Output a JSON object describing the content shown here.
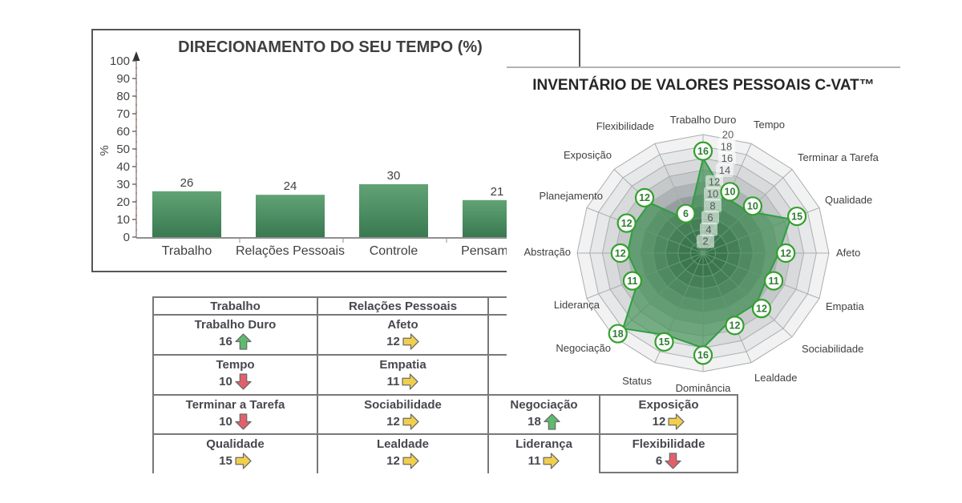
{
  "bar_panel": {
    "title": "DIRECIONAMENTO DO SEU TEMPO (%)",
    "ylabel": "%"
  },
  "radar_panel": {
    "title": "INVENTÁRIO DE VALORES PESSOAIS C-VAT™"
  },
  "chart_data": [
    {
      "type": "bar",
      "title": "DIRECIONAMENTO DO SEU TEMPO (%)",
      "categories": [
        "Trabalho",
        "Relações Pessoais",
        "Controle",
        "Pensamento"
      ],
      "values": [
        26,
        24,
        30,
        21
      ],
      "xlabel": "",
      "ylabel": "%",
      "ylim": [
        0,
        100
      ],
      "ytick_step": 10,
      "grid": false,
      "bar_gradient": [
        "#61a375",
        "#3a7950"
      ],
      "axis_color": "#8f8f8f",
      "text_color": "#454545",
      "red_tick_color": "#d94f4f"
    },
    {
      "type": "radar",
      "title": "INVENTÁRIO DE VALORES PESSOAIS C-VAT™",
      "categories": [
        "Trabalho Duro",
        "Tempo",
        "Terminar a Tarefa",
        "Qualidade",
        "Afeto",
        "Empatia",
        "Sociabilidade",
        "Lealdade",
        "Dominância",
        "Status",
        "Negociação",
        "Liderança",
        "Abstração",
        "Planejamento",
        "Exposição",
        "Flexibilidade"
      ],
      "values": [
        16,
        10,
        10,
        15,
        12,
        11,
        12,
        12,
        16,
        15,
        18,
        11,
        12,
        12,
        12,
        6
      ],
      "scale_min": 0,
      "scale_max": 20,
      "scale_ticks": [
        2,
        4,
        6,
        8,
        10,
        12,
        14,
        16,
        18,
        20
      ],
      "legend": "none",
      "ring_colors": [
        "#f2f2f3",
        "#e7e8e9",
        "#d8dadb",
        "#c5c9ca",
        "#aeb4b5",
        "#959da0",
        "#7c878a",
        "#636f74",
        "#4e5a60",
        "#3e4a50"
      ],
      "grid_line_color": "#a9aeb0",
      "fill_color": "rgba(46,139,68,0.58)",
      "line_color": "#2f9e41",
      "marker": {
        "fill": "#ffffff",
        "stroke": "#33a02c",
        "text_color": "#2e7d32"
      },
      "tick_text_color": "#595959",
      "axis_label_color": "#3f3f3f"
    }
  ],
  "table": {
    "arrow_colors": {
      "up": "#5dbb6d",
      "down": "#e3606a",
      "right": "#f2cf4b"
    },
    "arrow_outline": "#6b6b6b",
    "cells": [
      {
        "label": "Trabalho"
      },
      {
        "label": "Relações Pessoais"
      },
      {
        "label": ""
      },
      {
        "label": ""
      },
      {
        "label": "Trabalho Duro",
        "value": "16",
        "arrow": "up"
      },
      {
        "label": "Afeto",
        "value": "12",
        "arrow": "right"
      },
      {
        "label": ""
      },
      {
        "label": ""
      },
      {
        "label": "Tempo",
        "value": "10",
        "arrow": "down"
      },
      {
        "label": "Empatia",
        "value": "11",
        "arrow": "right"
      },
      {
        "label": ""
      },
      {
        "label": ""
      },
      {
        "label": "Terminar a Tarefa",
        "value": "10",
        "arrow": "down"
      },
      {
        "label": "Sociabilidade",
        "value": "12",
        "arrow": "right"
      },
      {
        "label": "Negociação",
        "value": "18",
        "arrow": "up"
      },
      {
        "label": "Exposição",
        "value": "12",
        "arrow": "right"
      },
      {
        "label": "Qualidade",
        "value": "15",
        "arrow": "right"
      },
      {
        "label": "Lealdade",
        "value": "12",
        "arrow": "right"
      },
      {
        "label": "Liderança",
        "value": "11",
        "arrow": "right"
      },
      {
        "label": "Flexibilidade",
        "value": "6",
        "arrow": "down"
      }
    ]
  }
}
